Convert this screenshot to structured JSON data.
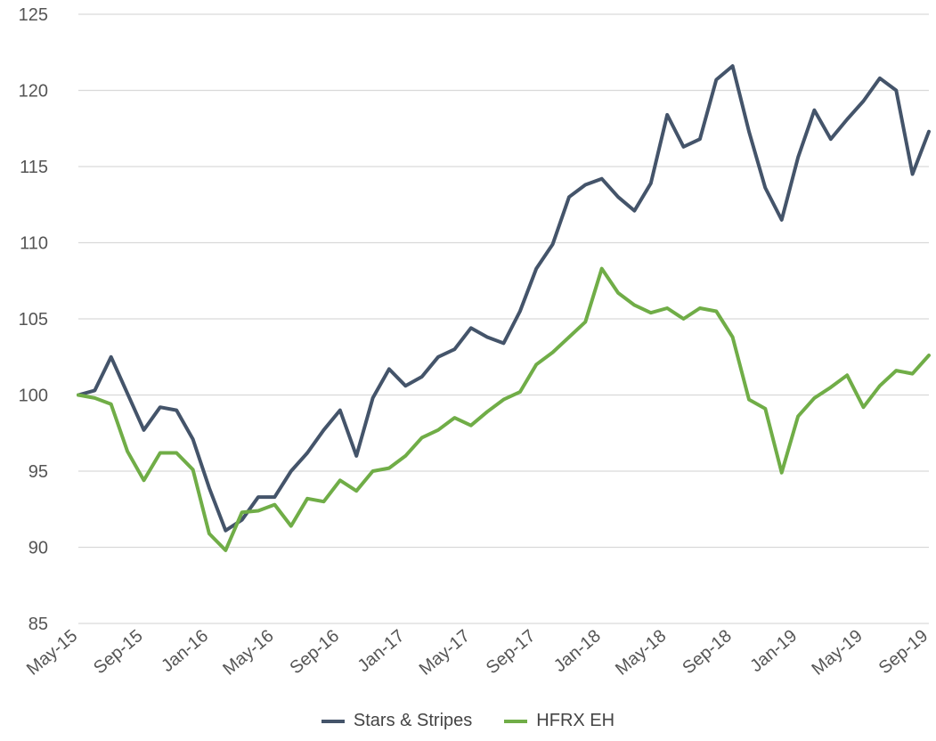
{
  "chart_data": {
    "type": "line",
    "x": [
      "May-15",
      "Jun-15",
      "Jul-15",
      "Aug-15",
      "Sep-15",
      "Oct-15",
      "Nov-15",
      "Dec-15",
      "Jan-16",
      "Feb-16",
      "Mar-16",
      "Apr-16",
      "May-16",
      "Jun-16",
      "Jul-16",
      "Aug-16",
      "Sep-16",
      "Oct-16",
      "Nov-16",
      "Dec-16",
      "Jan-17",
      "Feb-17",
      "Mar-17",
      "Apr-17",
      "May-17",
      "Jun-17",
      "Jul-17",
      "Aug-17",
      "Sep-17",
      "Oct-17",
      "Nov-17",
      "Dec-17",
      "Jan-18",
      "Feb-18",
      "Mar-18",
      "Apr-18",
      "May-18",
      "Jun-18",
      "Jul-18",
      "Aug-18",
      "Sep-18",
      "Oct-18",
      "Nov-18",
      "Dec-18",
      "Jan-19",
      "Feb-19",
      "Mar-19",
      "Apr-19",
      "May-19",
      "Jun-19",
      "Jul-19",
      "Aug-19",
      "Sep-19"
    ],
    "x_tick_labels": [
      "May-15",
      "Sep-15",
      "Jan-16",
      "May-16",
      "Sep-16",
      "Jan-17",
      "May-17",
      "Sep-17",
      "Jan-18",
      "May-18",
      "Sep-18",
      "Jan-19",
      "May-19",
      "Sep-19"
    ],
    "series": [
      {
        "name": "Stars & Stripes",
        "color": "#44546A",
        "values": [
          100.0,
          100.3,
          102.5,
          100.1,
          97.7,
          99.2,
          99.0,
          97.1,
          93.9,
          91.1,
          91.8,
          93.3,
          93.3,
          95.0,
          96.2,
          97.7,
          99.0,
          96.0,
          99.8,
          101.7,
          100.6,
          101.2,
          102.5,
          103.0,
          104.4,
          103.8,
          103.4,
          105.5,
          108.3,
          109.9,
          113.0,
          113.8,
          114.2,
          113.0,
          112.1,
          113.9,
          118.4,
          116.3,
          116.8,
          120.7,
          121.6,
          117.3,
          113.6,
          111.5,
          115.6,
          118.7,
          116.8,
          118.1,
          119.3,
          120.8,
          120.0,
          114.5,
          117.3
        ]
      },
      {
        "name": "HFRX EH",
        "color": "#70AD47",
        "values": [
          100.0,
          99.8,
          99.4,
          96.3,
          94.4,
          96.2,
          96.2,
          95.1,
          90.9,
          89.8,
          92.3,
          92.4,
          92.8,
          91.4,
          93.2,
          93.0,
          94.4,
          93.7,
          95.0,
          95.2,
          96.0,
          97.2,
          97.7,
          98.5,
          98.0,
          98.9,
          99.7,
          100.2,
          102.0,
          102.8,
          103.8,
          104.8,
          108.3,
          106.7,
          105.9,
          105.4,
          105.7,
          105.0,
          105.7,
          105.5,
          103.8,
          99.7,
          99.1,
          94.9,
          98.6,
          99.8,
          100.5,
          101.3,
          99.2,
          100.6,
          101.6,
          101.4,
          102.6
        ]
      }
    ],
    "y_ticks": [
      85,
      90,
      95,
      100,
      105,
      110,
      115,
      120,
      125
    ],
    "ylim": [
      85,
      125
    ],
    "grid": true,
    "legend_position": "bottom"
  }
}
